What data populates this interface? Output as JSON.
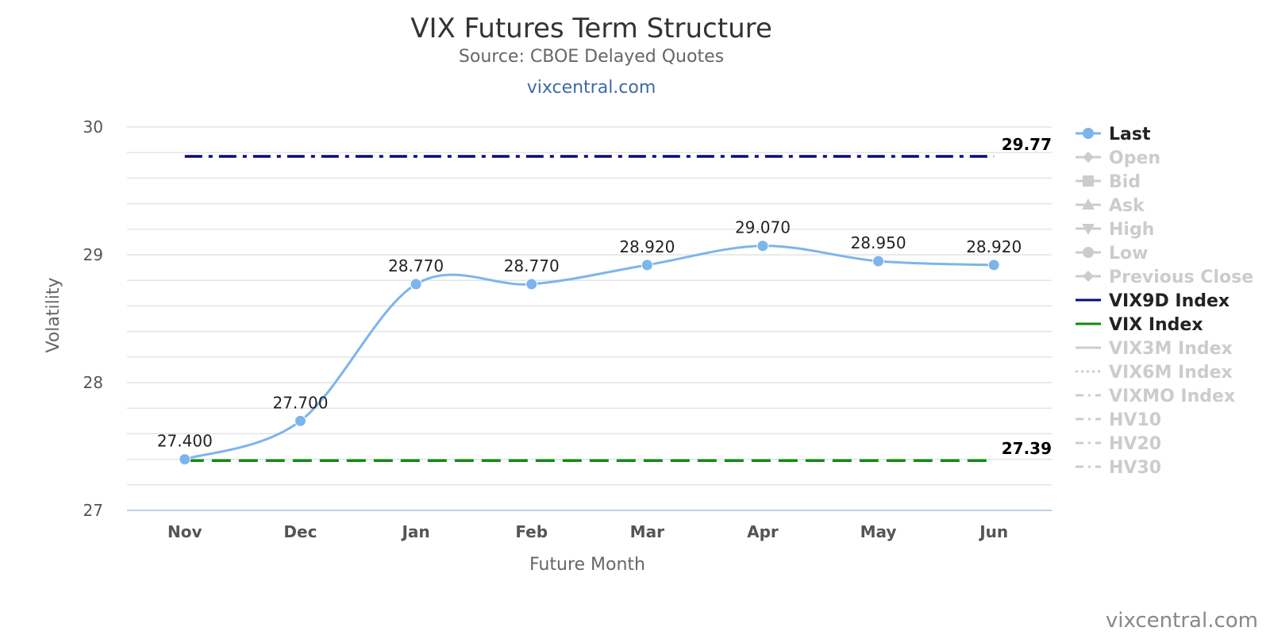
{
  "chart_data": {
    "type": "line",
    "title": "VIX Futures Term Structure",
    "subtitle": "Source: CBOE Delayed Quotes",
    "site_link": "vixcentral.com",
    "watermark": "vixcentral.com",
    "xlabel": "Future Month",
    "ylabel": "Volatility",
    "ylim": [
      27,
      30
    ],
    "yticks": [
      27,
      28,
      29,
      30
    ],
    "minor_grid_step": 0.2,
    "grid": true,
    "legend_position": "right",
    "categories": [
      "Nov",
      "Dec",
      "Jan",
      "Feb",
      "Mar",
      "Apr",
      "May",
      "Jun"
    ],
    "series": [
      {
        "name": "Last",
        "values": [
          27.4,
          27.7,
          28.77,
          28.77,
          28.92,
          29.07,
          28.95,
          28.92
        ],
        "labels": [
          "27.400",
          "27.700",
          "28.770",
          "28.770",
          "28.920",
          "29.070",
          "28.950",
          "28.920"
        ],
        "color": "#7cb5ec",
        "style": "spline"
      }
    ],
    "reference_lines": [
      {
        "name": "VIX9D Index",
        "value": 29.77,
        "label": "29.77",
        "color": "#0a0a80",
        "dash": "dash-dot"
      },
      {
        "name": "VIX Index",
        "value": 27.39,
        "label": "27.39",
        "color": "#138a13",
        "dash": "dash"
      }
    ],
    "legend": [
      {
        "name": "Last",
        "active": true,
        "symbol": "circle-line",
        "color": "#7cb5ec"
      },
      {
        "name": "Open",
        "active": false,
        "symbol": "diamond-line",
        "color": "#cccccc"
      },
      {
        "name": "Bid",
        "active": false,
        "symbol": "square-line",
        "color": "#cccccc"
      },
      {
        "name": "Ask",
        "active": false,
        "symbol": "triangle-line",
        "color": "#cccccc"
      },
      {
        "name": "High",
        "active": false,
        "symbol": "triangle-down-line",
        "color": "#cccccc"
      },
      {
        "name": "Low",
        "active": false,
        "symbol": "circle-line",
        "color": "#cccccc"
      },
      {
        "name": "Previous Close",
        "active": false,
        "symbol": "diamond-line",
        "color": "#cccccc"
      },
      {
        "name": "VIX9D Index",
        "active": true,
        "symbol": "solid-line",
        "color": "#0a0a80"
      },
      {
        "name": "VIX Index",
        "active": true,
        "symbol": "solid-line",
        "color": "#138a13"
      },
      {
        "name": "VIX3M Index",
        "active": false,
        "symbol": "solid-line",
        "color": "#cccccc"
      },
      {
        "name": "VIX6M Index",
        "active": false,
        "symbol": "dotted-line",
        "color": "#cccccc"
      },
      {
        "name": "VIXMO Index",
        "active": false,
        "symbol": "dash-dot-line",
        "color": "#cccccc"
      },
      {
        "name": "HV10",
        "active": false,
        "symbol": "dash-dot-line",
        "color": "#cccccc"
      },
      {
        "name": "HV20",
        "active": false,
        "symbol": "dash-dot-line",
        "color": "#cccccc"
      },
      {
        "name": "HV30",
        "active": false,
        "symbol": "dash-dot-line",
        "color": "#cccccc"
      }
    ]
  }
}
